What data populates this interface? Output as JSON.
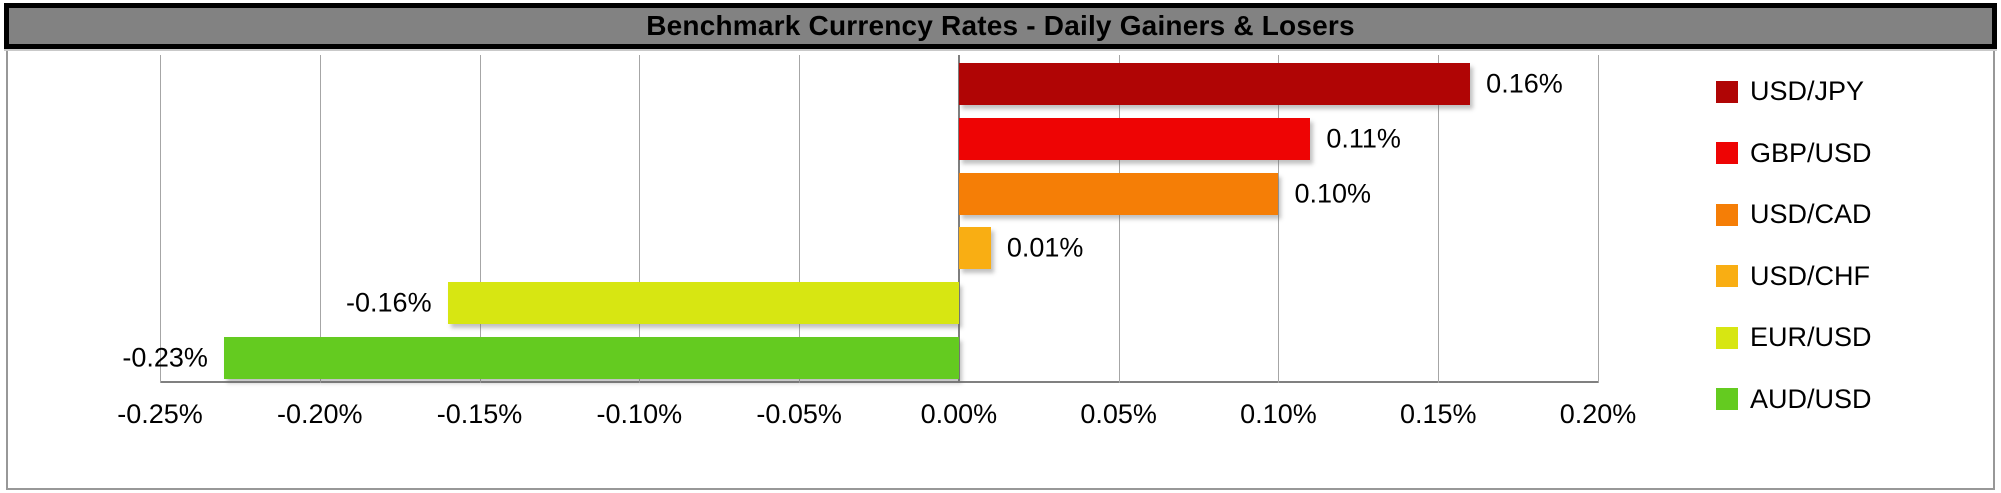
{
  "chart_data": {
    "type": "bar",
    "orientation": "horizontal",
    "title": "Benchmark Currency Rates - Daily Gainers & Losers",
    "series": [
      {
        "name": "USD/JPY",
        "value": 0.16,
        "label": "0.16%",
        "color": "#B00505"
      },
      {
        "name": "GBP/USD",
        "value": 0.11,
        "label": "0.11%",
        "color": "#EE0404"
      },
      {
        "name": "USD/CAD",
        "value": 0.1,
        "label": "0.10%",
        "color": "#F57E06"
      },
      {
        "name": "USD/CHF",
        "value": 0.01,
        "label": "0.01%",
        "color": "#F9AE13"
      },
      {
        "name": "EUR/USD",
        "value": -0.16,
        "label": "-0.16%",
        "color": "#D7E612"
      },
      {
        "name": "AUD/USD",
        "value": -0.23,
        "label": "-0.23%",
        "color": "#64CB20"
      }
    ],
    "xlim": [
      -0.25,
      0.2
    ],
    "x_tick_values": [
      -0.25,
      -0.2,
      -0.15,
      -0.1,
      -0.05,
      0.0,
      0.05,
      0.1,
      0.15,
      0.2
    ],
    "x_tick_labels": [
      "-0.25%",
      "-0.20%",
      "-0.15%",
      "-0.10%",
      "-0.05%",
      "0.00%",
      "0.05%",
      "0.10%",
      "0.15%",
      "0.20%"
    ],
    "xlabel": "",
    "ylabel": "",
    "grid": true,
    "legend_position": "right",
    "data_labels": "outside-end"
  },
  "style_colors": {
    "title_bar_bg": "#828282",
    "title_bar_border": "#000000",
    "gridline": "#A6A6A6",
    "zero_axis_line": "#7F7F7F",
    "axis_line": "#808080",
    "chart_border": "#989898",
    "plot_bg": "#FFFFFF",
    "text": "#000000"
  }
}
